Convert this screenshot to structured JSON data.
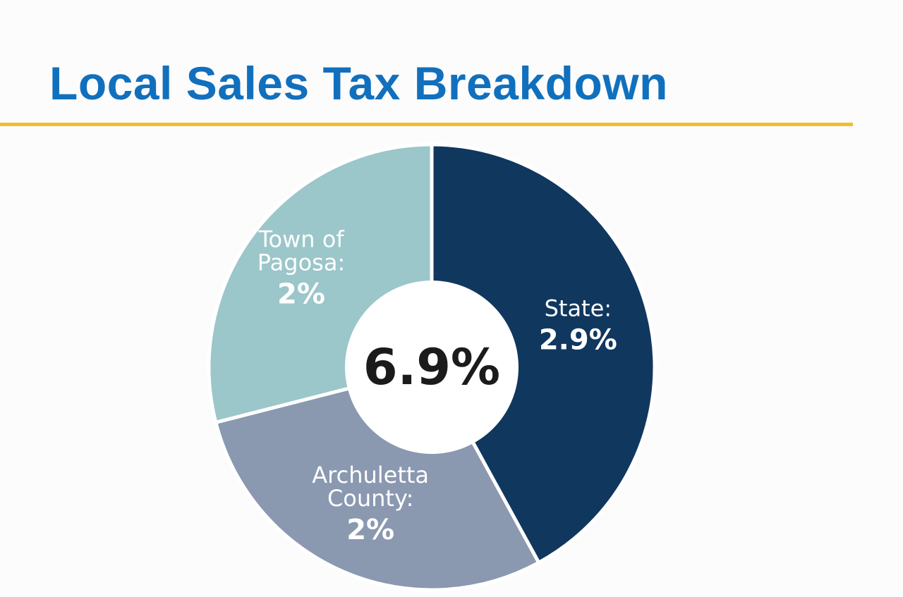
{
  "title": "Local Sales Tax Breakdown",
  "colors": {
    "title": "#1170bd",
    "rule": "#f0be2c",
    "background": "#fcfcfc"
  },
  "chart_data": {
    "type": "pie",
    "style": "donut",
    "title": "Local Sales Tax Breakdown",
    "center_label": "6.9%",
    "total": 6.9,
    "unit": "%",
    "start": "12 o'clock",
    "direction": "clockwise",
    "slices": [
      {
        "label_lines": [
          "State:"
        ],
        "value": 2.9,
        "value_label": "2.9%",
        "color": "#10375e"
      },
      {
        "label_lines": [
          "Archuletta",
          "County:"
        ],
        "value": 2.0,
        "value_label": "2%",
        "color": "#8a98b0"
      },
      {
        "label_lines": [
          "Town of",
          "Pagosa:"
        ],
        "value": 2.0,
        "value_label": "2%",
        "color": "#9bc6ca"
      }
    ]
  }
}
